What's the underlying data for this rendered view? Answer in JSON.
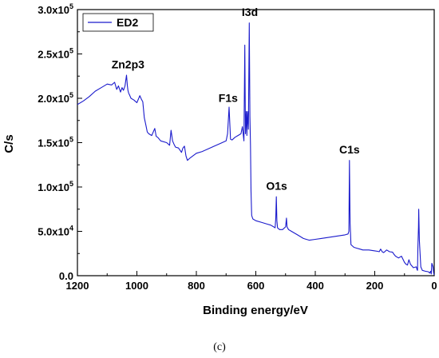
{
  "chart_data": {
    "type": "line",
    "xlabel": "Binding energy/eV",
    "ylabel": "C/s",
    "xlim": [
      1200,
      0
    ],
    "ylim": [
      0,
      300000
    ],
    "x_reversed": true,
    "x_ticks": [
      1200,
      1000,
      800,
      600,
      400,
      200,
      0
    ],
    "x_tick_labels": [
      "1200",
      "1000",
      "800",
      "600",
      "400",
      "200",
      "0"
    ],
    "y_ticks": [
      0,
      50000,
      100000,
      150000,
      200000,
      250000,
      300000
    ],
    "y_tick_labels": [
      {
        "mantissa": "0.0",
        "exp": ""
      },
      {
        "mantissa": "5.0x10",
        "exp": "4"
      },
      {
        "mantissa": "1.0x10",
        "exp": "5"
      },
      {
        "mantissa": "1.5x10",
        "exp": "5"
      },
      {
        "mantissa": "2.0x10",
        "exp": "5"
      },
      {
        "mantissa": "2.5x10",
        "exp": "5"
      },
      {
        "mantissa": "3.0x10",
        "exp": "5"
      }
    ],
    "legend": {
      "position": "top-left",
      "entries": [
        "ED2"
      ]
    },
    "color": "#1a1acc",
    "series": [
      {
        "name": "ED2",
        "x": [
          1200,
          1180,
          1160,
          1140,
          1120,
          1100,
          1085,
          1075,
          1068,
          1062,
          1055,
          1050,
          1045,
          1040,
          1035,
          1032,
          1030,
          1028,
          1025,
          1020,
          1010,
          1000,
          990,
          985,
          980,
          975,
          970,
          965,
          960,
          950,
          940,
          935,
          930,
          920,
          900,
          890,
          885,
          880,
          875,
          870,
          860,
          850,
          845,
          840,
          835,
          830,
          820,
          800,
          780,
          760,
          740,
          720,
          700,
          695,
          690,
          687,
          685,
          680,
          670,
          660,
          650,
          645,
          640,
          637,
          635,
          632,
          630,
          628,
          625,
          622,
          620,
          618,
          616,
          614,
          612,
          610,
          600,
          580,
          560,
          550,
          540,
          535,
          533,
          531,
          529,
          527,
          520,
          510,
          500,
          497,
          495,
          490,
          480,
          460,
          440,
          420,
          400,
          380,
          360,
          340,
          320,
          300,
          290,
          287,
          285,
          283,
          280,
          270,
          260,
          250,
          240,
          220,
          200,
          190,
          185,
          180,
          175,
          170,
          160,
          150,
          140,
          135,
          130,
          120,
          110,
          100,
          95,
          90,
          85,
          80,
          70,
          60,
          58,
          56,
          55,
          53,
          52,
          50,
          45,
          40,
          30,
          20,
          15,
          12,
          10,
          8,
          6,
          4,
          2,
          0
        ],
        "y": [
          193000,
          197000,
          202000,
          208000,
          212000,
          216000,
          215000,
          218000,
          210000,
          214000,
          207000,
          212000,
          209000,
          214000,
          226000,
          214000,
          209000,
          206000,
          204000,
          200000,
          198000,
          195000,
          203000,
          199000,
          196000,
          178000,
          170000,
          162000,
          160000,
          158000,
          166000,
          157000,
          156000,
          152000,
          150000,
          147000,
          164000,
          152000,
          148000,
          145000,
          144000,
          139000,
          144000,
          146000,
          135000,
          130000,
          133000,
          138000,
          140000,
          143000,
          146000,
          149000,
          152000,
          160000,
          190000,
          168000,
          154000,
          153000,
          156000,
          158000,
          160000,
          168000,
          152000,
          260000,
          160000,
          185000,
          158000,
          185000,
          165000,
          285000,
          180000,
          148000,
          95000,
          68000,
          66000,
          64000,
          62000,
          60000,
          58000,
          57000,
          55000,
          54000,
          65000,
          89000,
          62000,
          54000,
          52000,
          52000,
          55000,
          65000,
          55000,
          52000,
          50000,
          46000,
          42000,
          40000,
          41000,
          42000,
          43000,
          44000,
          45000,
          46000,
          47000,
          50000,
          130000,
          60000,
          35000,
          32000,
          31000,
          30000,
          29000,
          29000,
          28000,
          27500,
          27000,
          30000,
          27000,
          26000,
          29000,
          27000,
          26500,
          24000,
          22000,
          20000,
          22000,
          15000,
          13000,
          12000,
          18000,
          13000,
          9000,
          10000,
          7000,
          6000,
          30000,
          55000,
          75000,
          40000,
          10000,
          6000,
          5000,
          4500,
          3000,
          5000,
          2000,
          14000,
          12000,
          10000,
          3000,
          1000
        ]
      }
    ],
    "peak_labels": [
      {
        "text": "Zn2p3",
        "x": 1030,
        "y": 234000
      },
      {
        "text": "I3d",
        "x": 620,
        "y": 293000
      },
      {
        "text": "F1s",
        "x": 693,
        "y": 196000
      },
      {
        "text": "O1s",
        "x": 530,
        "y": 97000
      },
      {
        "text": "C1s",
        "x": 285,
        "y": 138000
      }
    ]
  },
  "caption": "(c)"
}
